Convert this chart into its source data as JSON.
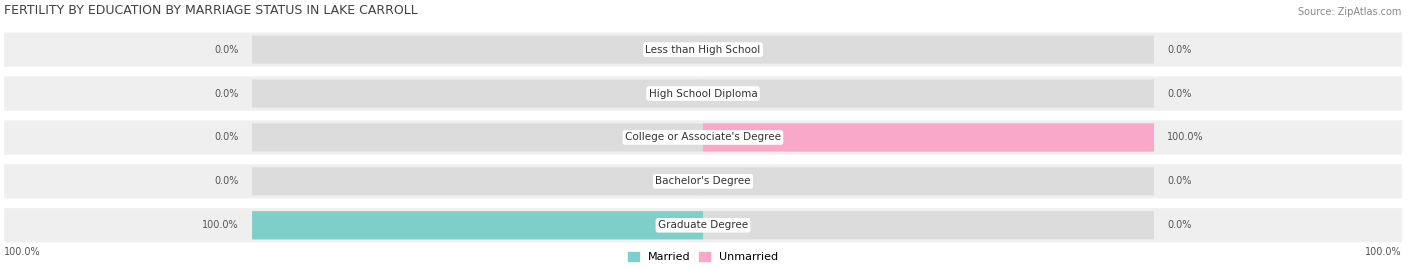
{
  "title": "FERTILITY BY EDUCATION BY MARRIAGE STATUS IN LAKE CARROLL",
  "source": "Source: ZipAtlas.com",
  "categories": [
    "Less than High School",
    "High School Diploma",
    "College or Associate's Degree",
    "Bachelor's Degree",
    "Graduate Degree"
  ],
  "married_values": [
    0.0,
    0.0,
    0.0,
    0.0,
    100.0
  ],
  "unmarried_values": [
    0.0,
    0.0,
    100.0,
    0.0,
    0.0
  ],
  "married_color": "#7ECECA",
  "unmarried_color": "#F9A8C9",
  "track_color": "#DCDCDC",
  "row_bg_color": "#EFEFEF",
  "title_color": "#404040",
  "axis_max": 100,
  "legend_married": "Married",
  "legend_unmarried": "Unmarried",
  "bottom_left_label": "100.0%",
  "bottom_right_label": "100.0%",
  "title_fontsize": 9,
  "source_fontsize": 7,
  "label_fontsize": 7.5,
  "value_fontsize": 7
}
